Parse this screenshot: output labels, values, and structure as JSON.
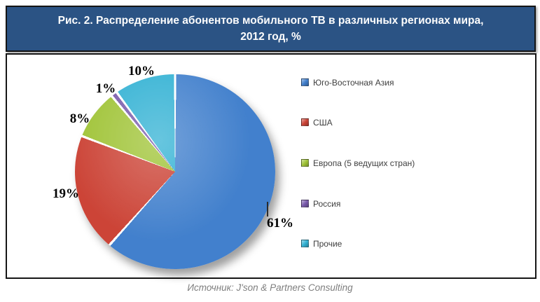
{
  "header": {
    "title_line1": "Рис. 2. Распределение абонентов мобильного ТВ в различных регионах мира,",
    "title_line2": "2012 год, %"
  },
  "chart_data": {
    "type": "pie",
    "title": "Рис. 2. Распределение абонентов мобильного ТВ в различных регионах мира, 2012 год, %",
    "unit": "%",
    "start_angle_deg": 0,
    "direction": "clockwise",
    "legend_position": "right",
    "slices": [
      {
        "label": "Юго-Восточная Азия",
        "value": 61,
        "pct_label": "61%",
        "color": "#4280CD"
      },
      {
        "label": "США",
        "value": 19,
        "pct_label": "19%",
        "color": "#CC4437"
      },
      {
        "label": "Европа (5 ведущих стран)",
        "value": 8,
        "pct_label": "8%",
        "color": "#A0C437"
      },
      {
        "label": "Россия",
        "value": 1,
        "pct_label": "1%",
        "color": "#7A5BAC"
      },
      {
        "label": "Прочие",
        "value": 10,
        "pct_label": "10%",
        "color": "#33B2D4"
      }
    ]
  },
  "footer": {
    "source": "Источник: J'son & Partners Consulting"
  }
}
